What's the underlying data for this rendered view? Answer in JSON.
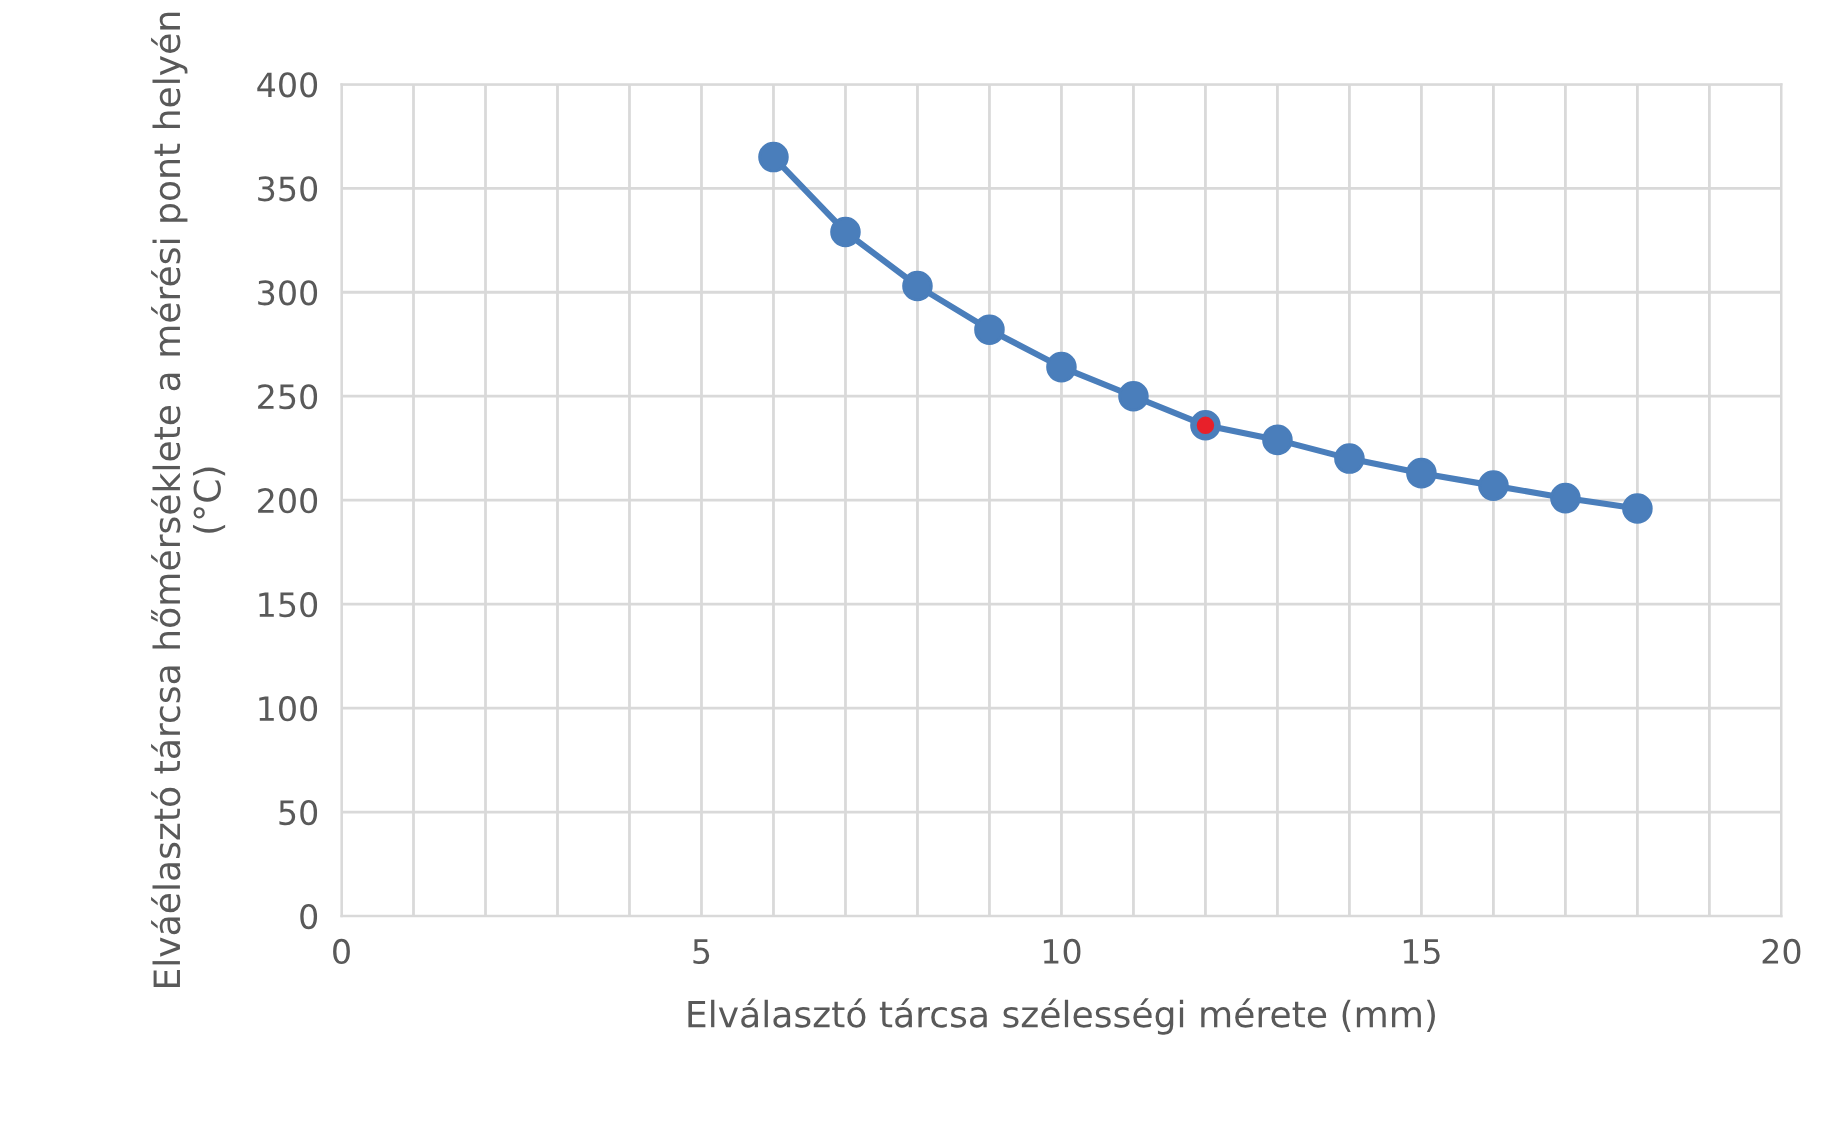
{
  "chart_data": {
    "type": "line",
    "xlabel": "Elválasztó tárcsa szélességi mérete (mm)",
    "ylabel": "Elváélasztó tárcsa hőmérséklete a mérési pont helyén (°C)",
    "series": [
      {
        "x": [
          6,
          7,
          8,
          9,
          10,
          11,
          12,
          13,
          14,
          15,
          16,
          17,
          18
        ],
        "values": [
          365,
          329,
          303,
          282,
          264,
          250,
          236,
          229,
          220,
          213,
          207,
          201,
          196
        ],
        "color": "#4a7ebb",
        "marker": "circle",
        "line_style": "solid"
      },
      {
        "type": "scatter",
        "x": [
          12
        ],
        "values": [
          236
        ],
        "color": "#e8202a",
        "marker": "circle"
      }
    ],
    "xlim": [
      0,
      20
    ],
    "ylim": [
      0,
      400
    ],
    "xticks": [
      0,
      {
        "value": 1,
        "label": null
      },
      {
        "value": 2,
        "label": null
      },
      {
        "value": 3,
        "label": null
      },
      {
        "value": 4,
        "label": null
      },
      5,
      {
        "value": 6,
        "label": null
      },
      {
        "value": 7,
        "label": null
      },
      {
        "value": 8,
        "label": null
      },
      {
        "value": 9,
        "label": null
      },
      10,
      {
        "value": 11,
        "label": null
      },
      {
        "value": 12,
        "label": null
      },
      {
        "value": 13,
        "label": null
      },
      {
        "value": 14,
        "label": null
      },
      15,
      {
        "value": 16,
        "label": null
      },
      {
        "value": 17,
        "label": null
      },
      {
        "value": 18,
        "label": null
      },
      {
        "value": 19,
        "label": null
      },
      20
    ],
    "yticks": [
      0,
      50,
      100,
      150,
      200,
      250,
      300,
      350,
      400
    ],
    "grid": true,
    "legend": false
  }
}
